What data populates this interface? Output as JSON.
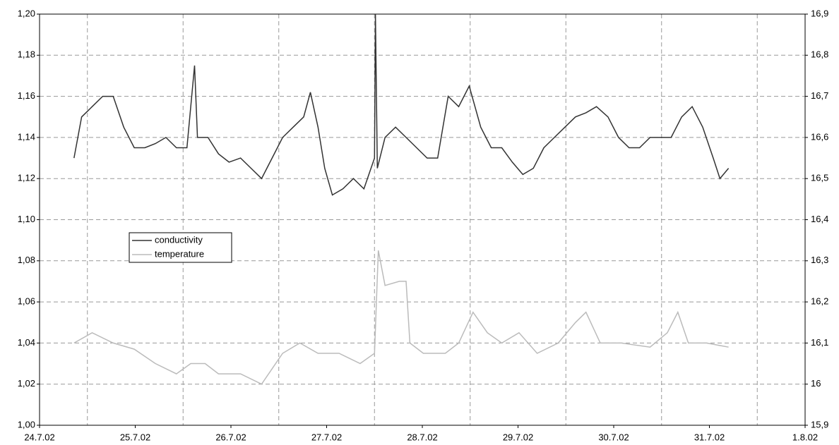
{
  "chart_data": {
    "type": "line",
    "series": [
      {
        "name": "conductivity",
        "color": "#333333",
        "axis": "y",
        "x": [
          0.36,
          0.44,
          0.55,
          0.66,
          0.77,
          0.88,
          0.99,
          1.1,
          1.21,
          1.32,
          1.43,
          1.54,
          1.62,
          1.65,
          1.76,
          1.87,
          1.98,
          2.1,
          2.21,
          2.32,
          2.43,
          2.54,
          2.65,
          2.76,
          2.83,
          2.91,
          2.98,
          3.06,
          3.17,
          3.28,
          3.39,
          3.5,
          3.51,
          3.53,
          3.61,
          3.72,
          3.83,
          3.94,
          4.05,
          4.16,
          4.27,
          4.38,
          4.49,
          4.61,
          4.72,
          4.83,
          4.94,
          5.05,
          5.16,
          5.27,
          5.38,
          5.49,
          5.6,
          5.71,
          5.82,
          5.94,
          6.05,
          6.16,
          6.27,
          6.38,
          6.49,
          6.6,
          6.71,
          6.82,
          6.93,
          7.04,
          7.11,
          7.2
        ],
        "values": [
          1.13,
          1.15,
          1.155,
          1.16,
          1.16,
          1.145,
          1.135,
          1.135,
          1.137,
          1.14,
          1.135,
          1.135,
          1.175,
          1.14,
          1.14,
          1.132,
          1.128,
          1.13,
          1.125,
          1.12,
          1.13,
          1.14,
          1.145,
          1.15,
          1.162,
          1.145,
          1.125,
          1.112,
          1.115,
          1.12,
          1.115,
          1.13,
          1.2,
          1.125,
          1.14,
          1.145,
          1.14,
          1.135,
          1.13,
          1.13,
          1.16,
          1.155,
          1.165,
          1.145,
          1.135,
          1.135,
          1.128,
          1.122,
          1.125,
          1.135,
          1.14,
          1.145,
          1.15,
          1.152,
          1.155,
          1.15,
          1.14,
          1.135,
          1.135,
          1.14,
          1.14,
          1.14,
          1.15,
          1.155,
          1.145,
          1.13,
          1.12,
          1.125
        ]
      },
      {
        "name": "temperature",
        "color": "#bbbbbb",
        "axis": "y2",
        "x": [
          0.36,
          0.55,
          0.77,
          0.99,
          1.21,
          1.43,
          1.58,
          1.73,
          1.87,
          2.1,
          2.32,
          2.54,
          2.72,
          2.91,
          3.13,
          3.35,
          3.5,
          3.54,
          3.61,
          3.76,
          3.83,
          3.87,
          4.01,
          4.24,
          4.38,
          4.53,
          4.68,
          4.83,
          5.01,
          5.2,
          5.42,
          5.6,
          5.71,
          5.86,
          6.08,
          6.38,
          6.56,
          6.67,
          6.78,
          6.97,
          7.2
        ],
        "values": [
          16.1,
          16.125,
          16.1,
          16.085,
          16.05,
          16.025,
          16.05,
          16.05,
          16.025,
          16.025,
          16.0,
          16.075,
          16.1,
          16.075,
          16.075,
          16.05,
          16.075,
          16.325,
          16.24,
          16.25,
          16.25,
          16.1,
          16.075,
          16.075,
          16.1,
          16.175,
          16.125,
          16.1,
          16.125,
          16.075,
          16.1,
          16.15,
          16.175,
          16.1,
          16.1,
          16.09,
          16.125,
          16.175,
          16.1,
          16.1,
          16.09
        ]
      }
    ],
    "xlim": [
      0,
      8
    ],
    "xticks": [
      {
        "value": 0,
        "label": "24.7.02"
      },
      {
        "value": 1,
        "label": "25.7.02"
      },
      {
        "value": 2,
        "label": "26.7.02"
      },
      {
        "value": 3,
        "label": "27.7.02"
      },
      {
        "value": 4,
        "label": "28.7.02"
      },
      {
        "value": 5,
        "label": "29.7.02"
      },
      {
        "value": 6,
        "label": "30.7.02"
      },
      {
        "value": 7,
        "label": "31.7.02"
      },
      {
        "value": 8,
        "label": "1.8.02"
      }
    ],
    "ylim": [
      1.0,
      1.2
    ],
    "yticks": [
      {
        "value": 1.0,
        "label": "1,00"
      },
      {
        "value": 1.02,
        "label": "1,02"
      },
      {
        "value": 1.04,
        "label": "1,04"
      },
      {
        "value": 1.06,
        "label": "1,06"
      },
      {
        "value": 1.08,
        "label": "1,08"
      },
      {
        "value": 1.1,
        "label": "1,10"
      },
      {
        "value": 1.12,
        "label": "1,12"
      },
      {
        "value": 1.14,
        "label": "1,14"
      },
      {
        "value": 1.16,
        "label": "1,16"
      },
      {
        "value": 1.18,
        "label": "1,18"
      },
      {
        "value": 1.2,
        "label": "1,20"
      }
    ],
    "y2lim": [
      15.9,
      16.9
    ],
    "y2ticks": [
      {
        "value": 15.9,
        "label": "15,9"
      },
      16,
      {
        "value": 16.1,
        "label": "16,1"
      },
      {
        "value": 16.2,
        "label": "16,2"
      },
      {
        "value": 16.3,
        "label": "16,3"
      },
      {
        "value": 16.4,
        "label": "16,4"
      },
      {
        "value": 16.5,
        "label": "16,5"
      },
      {
        "value": 16.6,
        "label": "16,6"
      },
      {
        "value": 16.7,
        "label": "16,7"
      },
      {
        "value": 16.8,
        "label": "16,8"
      },
      {
        "value": 16.9,
        "label": "16,9"
      }
    ],
    "grid": true,
    "legend": "center-left"
  }
}
